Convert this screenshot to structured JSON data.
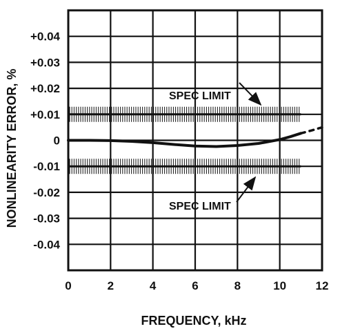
{
  "chart_data": {
    "type": "line",
    "xlabel": "FREQUENCY, kHz",
    "ylabel": "NONLINEARITY ERROR, %",
    "xlim": [
      0,
      12
    ],
    "ylim": [
      -0.05,
      0.05
    ],
    "x_ticks": [
      0,
      2,
      4,
      6,
      8,
      10,
      12
    ],
    "x_tick_labels": [
      "0",
      "2",
      "4",
      "6",
      "8",
      "10",
      "12"
    ],
    "y_ticks": [
      0.04,
      0.03,
      0.02,
      0.01,
      0,
      -0.01,
      -0.02,
      -0.03,
      -0.04
    ],
    "y_tick_labels": [
      "+0.04",
      "+0.03",
      "+0.02",
      "+0.01",
      "0",
      "-0.01",
      "-0.02",
      "-0.03",
      "-0.04"
    ],
    "grid": true,
    "series": [
      {
        "x": [
          0,
          1,
          2,
          3,
          4,
          5,
          6,
          7,
          8,
          9,
          10,
          10.5,
          11
        ],
        "y": [
          0,
          0,
          -0.0001,
          -0.0004,
          -0.0009,
          -0.0016,
          -0.0022,
          -0.0024,
          -0.002,
          -0.0012,
          0.0003,
          0.0014,
          0.0027
        ]
      },
      {
        "style": "dashed",
        "x": [
          11,
          11.5,
          12
        ],
        "y": [
          0.0027,
          0.0038,
          0.005
        ]
      }
    ],
    "spec_limits": [
      {
        "value": 0.01,
        "x_range": [
          0,
          11
        ],
        "label": "SPEC LIMIT"
      },
      {
        "value": -0.01,
        "x_range": [
          0,
          11
        ],
        "label": "SPEC LIMIT"
      }
    ]
  }
}
